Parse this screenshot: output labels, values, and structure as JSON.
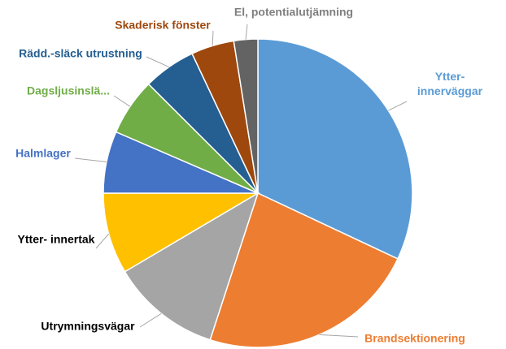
{
  "chart_data": {
    "type": "pie",
    "categories": [
      "Ytter-\ninnerväggar",
      "Brandsektionering",
      "Utrymningsvägar",
      "Ytter- innertak",
      "Halmlager",
      "Dagsljusinslä...",
      "Rädd.-släck utrustning",
      "Skaderisk fönster",
      "El, potentialutjämning"
    ],
    "values": [
      32,
      23,
      11.5,
      8.5,
      6.5,
      6,
      5.5,
      4.5,
      2.5
    ],
    "colors": [
      "#5b9bd5",
      "#ed7d31",
      "#a5a5a5",
      "#ffc000",
      "#4472c4",
      "#70ad47",
      "#255e91",
      "#9e480e",
      "#636363"
    ],
    "label_colors": [
      "#5b9bd5",
      "#ed7d31",
      "#000000",
      "#000000",
      "#4472c4",
      "#70ad47",
      "#255e91",
      "#9e480e",
      "#7f7f7f"
    ]
  }
}
